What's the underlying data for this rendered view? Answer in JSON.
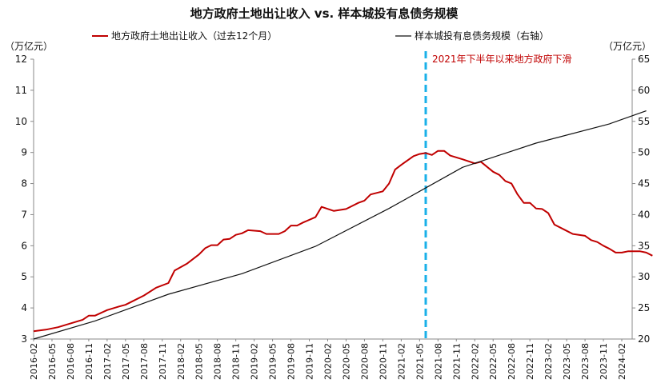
{
  "chart_data": {
    "type": "line",
    "title": "地方政府土地出让收入 vs. 样本城投有息债务规模",
    "left_axis_unit": "（万亿元）",
    "right_axis_unit": "（万亿元）",
    "ylim_left": [
      3,
      12
    ],
    "ylim_right": [
      20,
      65
    ],
    "yticks_left": [
      "3",
      "4",
      "5",
      "6",
      "7",
      "8",
      "9",
      "10",
      "11",
      "12"
    ],
    "yticks_right": [
      "20",
      "25",
      "30",
      "35",
      "40",
      "45",
      "50",
      "55",
      "60",
      "65"
    ],
    "x_ticks": [
      "2016-02",
      "2016-05",
      "2016-08",
      "2016-11",
      "2017-02",
      "2017-05",
      "2017-08",
      "2017-11",
      "2018-02",
      "2018-05",
      "2018-08",
      "2018-11",
      "2019-02",
      "2019-05",
      "2019-08",
      "2019-11",
      "2020-02",
      "2020-05",
      "2020-08",
      "2020-11",
      "2021-02",
      "2021-05",
      "2021-08",
      "2021-11",
      "2022-02",
      "2022-05",
      "2022-08",
      "2022-11",
      "2023-02",
      "2023-05",
      "2023-08",
      "2023-11",
      "2024-02"
    ],
    "grid": false,
    "legend_position": "top",
    "vline": {
      "x": "2021-06",
      "color": "#1ab0e8"
    },
    "annotation": {
      "text": "2021年下半年以来地方政府下滑",
      "color": "#c00000"
    },
    "series": [
      {
        "name": "地方政府土地出让收入（过去12个月）",
        "axis": "left",
        "color": "#c00000",
        "points": [
          [
            "2016-02",
            3.25
          ],
          [
            "2016-04",
            3.3
          ],
          [
            "2016-06",
            3.38
          ],
          [
            "2016-08",
            3.5
          ],
          [
            "2016-10",
            3.62
          ],
          [
            "2016-11",
            3.75
          ],
          [
            "2016-12",
            3.75
          ],
          [
            "2017-02",
            3.93
          ],
          [
            "2017-04",
            4.05
          ],
          [
            "2017-05",
            4.1
          ],
          [
            "2017-06",
            4.2
          ],
          [
            "2017-08",
            4.4
          ],
          [
            "2017-10",
            4.65
          ],
          [
            "2017-12",
            4.8
          ],
          [
            "2018-01",
            5.2
          ],
          [
            "2018-03",
            5.42
          ],
          [
            "2018-05",
            5.72
          ],
          [
            "2018-06",
            5.92
          ],
          [
            "2018-07",
            6.02
          ],
          [
            "2018-08",
            6.02
          ],
          [
            "2018-09",
            6.2
          ],
          [
            "2018-10",
            6.22
          ],
          [
            "2018-11",
            6.35
          ],
          [
            "2018-12",
            6.4
          ],
          [
            "2019-01",
            6.5
          ],
          [
            "2019-03",
            6.47
          ],
          [
            "2019-04",
            6.38
          ],
          [
            "2019-06",
            6.38
          ],
          [
            "2019-07",
            6.47
          ],
          [
            "2019-08",
            6.65
          ],
          [
            "2019-09",
            6.65
          ],
          [
            "2019-10",
            6.75
          ],
          [
            "2019-12",
            6.92
          ],
          [
            "2020-01",
            7.25
          ],
          [
            "2020-03",
            7.12
          ],
          [
            "2020-05",
            7.18
          ],
          [
            "2020-07",
            7.38
          ],
          [
            "2020-08",
            7.45
          ],
          [
            "2020-09",
            7.65
          ],
          [
            "2020-11",
            7.75
          ],
          [
            "2020-12",
            8.0
          ],
          [
            "2021-01",
            8.45
          ],
          [
            "2021-02",
            8.6
          ],
          [
            "2021-04",
            8.88
          ],
          [
            "2021-05",
            8.95
          ],
          [
            "2021-06",
            8.98
          ],
          [
            "2021-07",
            8.92
          ],
          [
            "2021-08",
            9.05
          ],
          [
            "2021-09",
            9.05
          ],
          [
            "2021-10",
            8.9
          ],
          [
            "2021-12",
            8.78
          ],
          [
            "2022-02",
            8.65
          ],
          [
            "2022-03",
            8.7
          ],
          [
            "2022-05",
            8.38
          ],
          [
            "2022-06",
            8.28
          ],
          [
            "2022-07",
            8.08
          ],
          [
            "2022-08",
            8.0
          ],
          [
            "2022-09",
            7.65
          ],
          [
            "2022-10",
            7.38
          ],
          [
            "2022-11",
            7.38
          ],
          [
            "2022-12",
            7.2
          ],
          [
            "2023-01",
            7.18
          ],
          [
            "2023-02",
            7.05
          ],
          [
            "2023-03",
            6.68
          ],
          [
            "2023-05",
            6.48
          ],
          [
            "2023-06",
            6.38
          ],
          [
            "2023-08",
            6.32
          ],
          [
            "2023-09",
            6.18
          ],
          [
            "2023-10",
            6.12
          ],
          [
            "2023-11",
            6.0
          ],
          [
            "2023-12",
            5.9
          ],
          [
            "2024-01",
            5.78
          ],
          [
            "2024-02",
            5.78
          ],
          [
            "2024-03",
            5.82
          ],
          [
            "2024-05",
            5.82
          ],
          [
            "2024-06",
            5.78
          ],
          [
            "2024-07",
            5.68
          ]
        ]
      },
      {
        "name": "样本城投有息债务规模（右轴）",
        "axis": "right",
        "color": "#111111",
        "points": [
          [
            "2016-02",
            20.0
          ],
          [
            "2016-12",
            22.9
          ],
          [
            "2017-12",
            27.2
          ],
          [
            "2018-12",
            30.5
          ],
          [
            "2019-12",
            34.9
          ],
          [
            "2020-12",
            41.0
          ],
          [
            "2021-12",
            47.6
          ],
          [
            "2022-12",
            51.5
          ],
          [
            "2023-12",
            54.6
          ],
          [
            "2024-06",
            56.7
          ]
        ]
      }
    ]
  }
}
